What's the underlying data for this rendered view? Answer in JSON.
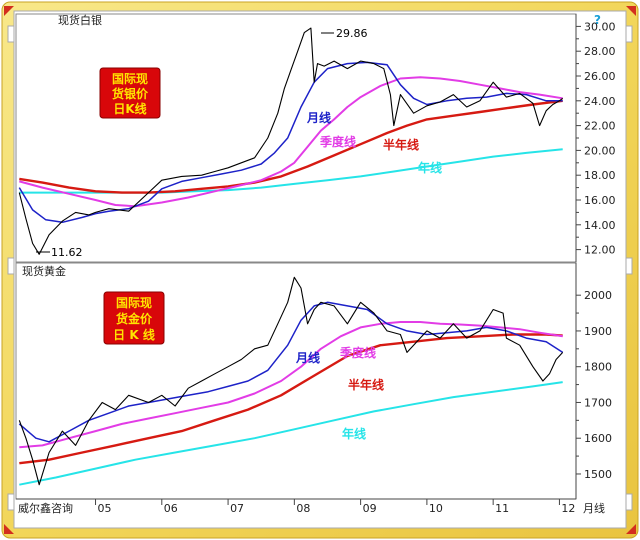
{
  "colors": {
    "frame": "#f2d65a",
    "price": "#000000",
    "month_ma": "#1d22c8",
    "quarter_ma": "#e23ce6",
    "half_year_ma": "#d61a12",
    "year_ma": "#26e4e8",
    "badge_bg": "#d8070a",
    "badge_text": "#ffe400"
  },
  "footer": {
    "brand": "威尔鑫咨询",
    "period_label": "月线"
  },
  "chart_data": [
    {
      "type": "line",
      "title": "现货白银",
      "badge": [
        "国际现",
        "货银价",
        "日K线"
      ],
      "x_tick_labels": [
        "05",
        "06",
        "07",
        "08",
        "09",
        "10",
        "11",
        "12"
      ],
      "ylim": [
        11,
        31
      ],
      "y_ticks": [
        "12.00",
        "14.00",
        "16.00",
        "18.00",
        "20.00",
        "22.00",
        "24.00",
        "26.00",
        "28.00",
        "30.00"
      ],
      "annotations": [
        {
          "text": "29.86",
          "x": 8.2,
          "y": 29.86
        },
        {
          "text": "11.62",
          "x": 4.15,
          "y": 11.62
        }
      ],
      "line_labels": [
        {
          "text": "月线",
          "series": "month"
        },
        {
          "text": "季度线",
          "series": "quarter"
        },
        {
          "text": "半年线",
          "series": "half_year"
        },
        {
          "text": "年线",
          "series": "year"
        }
      ],
      "series": [
        {
          "key": "price",
          "x": [
            3.85,
            3.95,
            4.05,
            4.15,
            4.3,
            4.5,
            4.7,
            4.9,
            5.0,
            5.2,
            5.5,
            5.8,
            6.0,
            6.3,
            6.6,
            6.8,
            7.0,
            7.2,
            7.4,
            7.6,
            7.75,
            7.85,
            7.95,
            8.05,
            8.15,
            8.25,
            8.3,
            8.35,
            8.45,
            8.6,
            8.8,
            9.0,
            9.2,
            9.35,
            9.45,
            9.5,
            9.6,
            9.8,
            10.0,
            10.2,
            10.4,
            10.6,
            10.8,
            11.0,
            11.2,
            11.4,
            11.6,
            11.7,
            11.8,
            11.9,
            12.0,
            12.05
          ],
          "values": [
            16.6,
            14.5,
            12.5,
            11.62,
            13.2,
            14.3,
            15.0,
            14.8,
            15.0,
            15.3,
            15.1,
            16.6,
            17.6,
            17.9,
            18.0,
            18.3,
            18.6,
            19.0,
            19.4,
            21.0,
            23.0,
            25.0,
            26.5,
            28.0,
            29.5,
            29.86,
            25.5,
            27.0,
            26.8,
            27.2,
            26.6,
            27.2,
            27.0,
            26.6,
            24.5,
            22.0,
            24.5,
            23.0,
            23.6,
            23.9,
            24.5,
            23.5,
            24.0,
            25.5,
            24.3,
            24.6,
            23.8,
            22.0,
            23.2,
            23.7,
            24.0,
            24.2
          ]
        },
        {
          "key": "month",
          "x": [
            3.85,
            4.05,
            4.25,
            4.5,
            4.8,
            5.0,
            5.2,
            5.5,
            5.8,
            6.0,
            6.3,
            6.6,
            6.9,
            7.2,
            7.5,
            7.7,
            7.9,
            8.1,
            8.3,
            8.5,
            8.8,
            9.1,
            9.4,
            9.6,
            9.8,
            10.0,
            10.3,
            10.6,
            10.9,
            11.2,
            11.5,
            11.8,
            12.05
          ],
          "values": [
            17.0,
            15.2,
            14.4,
            14.2,
            14.6,
            14.9,
            15.1,
            15.3,
            15.9,
            16.9,
            17.5,
            17.8,
            18.1,
            18.4,
            18.9,
            19.8,
            21.0,
            23.5,
            25.5,
            26.6,
            27.0,
            27.1,
            26.9,
            25.3,
            24.2,
            23.7,
            24.0,
            24.2,
            24.3,
            24.6,
            24.5,
            24.0,
            24.0
          ]
        },
        {
          "key": "quarter",
          "x": [
            3.85,
            4.2,
            4.6,
            5.0,
            5.3,
            5.6,
            6.0,
            6.4,
            6.8,
            7.2,
            7.5,
            7.8,
            8.0,
            8.2,
            8.4,
            8.6,
            8.8,
            9.0,
            9.3,
            9.6,
            9.9,
            10.2,
            10.5,
            10.8,
            11.1,
            11.4,
            11.7,
            12.05
          ],
          "values": [
            17.5,
            17.0,
            16.5,
            16.0,
            15.6,
            15.5,
            15.8,
            16.2,
            16.7,
            17.2,
            17.6,
            18.3,
            19.0,
            20.3,
            21.6,
            22.5,
            23.5,
            24.3,
            25.2,
            25.8,
            25.9,
            25.8,
            25.6,
            25.3,
            25.0,
            24.7,
            24.5,
            24.2
          ]
        },
        {
          "key": "half_year",
          "x": [
            3.85,
            4.2,
            4.6,
            5.0,
            5.4,
            5.8,
            6.2,
            6.6,
            7.0,
            7.4,
            7.8,
            8.2,
            8.6,
            9.0,
            9.4,
            9.7,
            10.0,
            10.4,
            10.8,
            11.2,
            11.6,
            12.05
          ],
          "values": [
            17.7,
            17.4,
            17.0,
            16.7,
            16.6,
            16.6,
            16.7,
            16.9,
            17.1,
            17.4,
            17.9,
            18.7,
            19.6,
            20.5,
            21.4,
            22.0,
            22.5,
            22.8,
            23.1,
            23.4,
            23.7,
            24.0
          ]
        },
        {
          "key": "year",
          "x": [
            3.85,
            4.5,
            5.0,
            5.5,
            6.0,
            6.5,
            7.0,
            7.5,
            8.0,
            8.5,
            9.0,
            9.5,
            10.0,
            10.5,
            11.0,
            11.5,
            12.05
          ],
          "values": [
            16.6,
            16.6,
            16.6,
            16.6,
            16.6,
            16.7,
            16.8,
            17.0,
            17.3,
            17.6,
            17.9,
            18.3,
            18.7,
            19.1,
            19.5,
            19.8,
            20.1
          ]
        }
      ]
    },
    {
      "type": "line",
      "title": "现货黄金",
      "badge": [
        "国际现",
        "货金价",
        "日 K 线"
      ],
      "x_tick_labels": [
        "05",
        "06",
        "07",
        "08",
        "09",
        "10",
        "11",
        "12"
      ],
      "ylim": [
        1430,
        2090
      ],
      "y_ticks": [
        "1500",
        "1600",
        "1700",
        "1800",
        "1900",
        "2000"
      ],
      "annotations": [],
      "line_labels": [
        {
          "text": "月线",
          "series": "month"
        },
        {
          "text": "季度线",
          "series": "quarter"
        },
        {
          "text": "半年线",
          "series": "half_year"
        },
        {
          "text": "年线",
          "series": "year"
        }
      ],
      "series": [
        {
          "key": "price",
          "x": [
            3.85,
            3.95,
            4.05,
            4.15,
            4.3,
            4.5,
            4.7,
            4.9,
            5.1,
            5.3,
            5.5,
            5.8,
            6.0,
            6.2,
            6.4,
            6.6,
            6.8,
            7.0,
            7.2,
            7.4,
            7.6,
            7.75,
            7.9,
            8.0,
            8.1,
            8.2,
            8.3,
            8.4,
            8.6,
            8.8,
            9.0,
            9.2,
            9.4,
            9.6,
            9.7,
            9.8,
            10.0,
            10.2,
            10.4,
            10.6,
            10.8,
            11.0,
            11.15,
            11.2,
            11.4,
            11.6,
            11.75,
            11.85,
            11.95,
            12.05
          ],
          "values": [
            1650,
            1600,
            1540,
            1470,
            1560,
            1620,
            1580,
            1650,
            1700,
            1680,
            1720,
            1700,
            1720,
            1690,
            1740,
            1760,
            1780,
            1800,
            1820,
            1850,
            1860,
            1920,
            1980,
            2050,
            2020,
            1920,
            1960,
            1980,
            1970,
            1920,
            1980,
            1950,
            1900,
            1890,
            1840,
            1860,
            1900,
            1880,
            1920,
            1880,
            1900,
            1960,
            1950,
            1880,
            1860,
            1800,
            1760,
            1780,
            1820,
            1840
          ]
        },
        {
          "key": "month",
          "x": [
            3.85,
            4.1,
            4.3,
            4.6,
            4.9,
            5.2,
            5.5,
            5.8,
            6.1,
            6.4,
            6.7,
            7.0,
            7.3,
            7.6,
            7.9,
            8.1,
            8.3,
            8.5,
            8.8,
            9.1,
            9.4,
            9.7,
            10.0,
            10.3,
            10.6,
            10.9,
            11.2,
            11.5,
            11.8,
            12.05
          ],
          "values": [
            1640,
            1600,
            1590,
            1620,
            1650,
            1670,
            1690,
            1700,
            1710,
            1720,
            1730,
            1745,
            1760,
            1790,
            1860,
            1930,
            1970,
            1980,
            1970,
            1960,
            1920,
            1900,
            1890,
            1895,
            1900,
            1910,
            1900,
            1880,
            1870,
            1840
          ]
        },
        {
          "key": "quarter",
          "x": [
            3.85,
            4.2,
            4.6,
            5.0,
            5.4,
            5.8,
            6.2,
            6.6,
            7.0,
            7.4,
            7.8,
            8.1,
            8.4,
            8.7,
            9.0,
            9.3,
            9.6,
            9.9,
            10.2,
            10.5,
            10.8,
            11.1,
            11.4,
            11.7,
            12.05
          ],
          "values": [
            1575,
            1580,
            1600,
            1620,
            1640,
            1655,
            1670,
            1685,
            1700,
            1725,
            1760,
            1800,
            1850,
            1885,
            1910,
            1920,
            1925,
            1925,
            1920,
            1918,
            1915,
            1910,
            1905,
            1895,
            1885
          ]
        },
        {
          "key": "half_year",
          "x": [
            3.85,
            4.3,
            4.8,
            5.3,
            5.8,
            6.3,
            6.8,
            7.3,
            7.8,
            8.3,
            8.8,
            9.3,
            9.8,
            10.3,
            10.8,
            11.3,
            11.8,
            12.05
          ],
          "values": [
            1530,
            1540,
            1560,
            1580,
            1600,
            1620,
            1650,
            1680,
            1720,
            1775,
            1830,
            1860,
            1870,
            1880,
            1885,
            1890,
            1890,
            1887
          ]
        },
        {
          "key": "year",
          "x": [
            3.85,
            4.4,
            5.0,
            5.6,
            6.2,
            6.8,
            7.4,
            8.0,
            8.6,
            9.2,
            9.8,
            10.4,
            11.0,
            11.6,
            12.05
          ],
          "values": [
            1470,
            1490,
            1515,
            1540,
            1560,
            1580,
            1600,
            1625,
            1650,
            1675,
            1695,
            1715,
            1730,
            1745,
            1757
          ]
        }
      ]
    }
  ]
}
